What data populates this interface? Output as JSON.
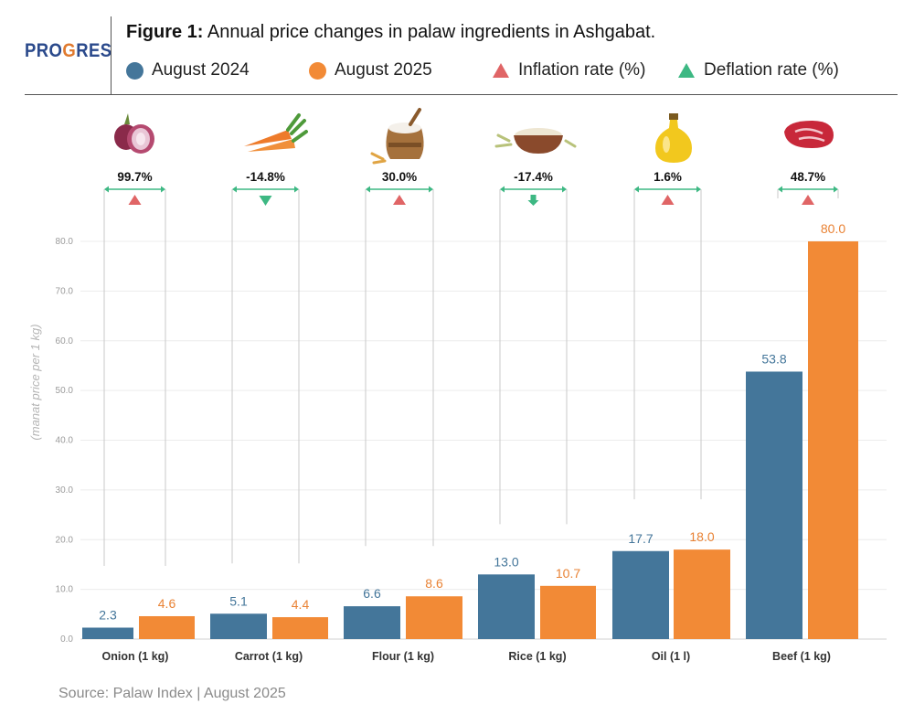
{
  "header": {
    "logo_prefix": "PRO",
    "logo_accent": "G",
    "logo_suffix": "RES",
    "title_prefix": "Figure 1:",
    "title_text": " Annual price changes in palaw ingredients in Ashgabat."
  },
  "legend": {
    "items": [
      {
        "label": "August 2024",
        "kind": "dot",
        "color": "#44769a"
      },
      {
        "label": "August 2025",
        "kind": "dot",
        "color": "#f28a36"
      },
      {
        "label": "Inflation rate (%)",
        "kind": "triangle-up",
        "color": "#e06566"
      },
      {
        "label": "Deflation rate (%)",
        "kind": "triangle-up",
        "color": "#3db883"
      }
    ]
  },
  "chart_data": {
    "type": "bar",
    "ylabel": "(manat price per 1 kg)",
    "ylim": [
      0,
      80
    ],
    "yticks": [
      "0.0",
      "10.0",
      "20.0",
      "30.0",
      "40.0",
      "50.0",
      "60.0",
      "70.0",
      "80.0"
    ],
    "grid": true,
    "categories": [
      "Onion (1 kg)",
      "Carrot (1 kg)",
      "Flour (1 kg)",
      "Rice (1 kg)",
      "Oil (1 l)",
      "Beef (1 kg)"
    ],
    "icons": [
      "onion-icon",
      "carrot-icon",
      "flour-sack-icon",
      "rice-bowl-icon",
      "oil-bottle-icon",
      "beef-icon"
    ],
    "series": [
      {
        "name": "August 2024",
        "color": "#44769a",
        "values": [
          2.3,
          5.1,
          6.6,
          13.0,
          17.7,
          53.8
        ],
        "labels": [
          "2.3",
          "5.1",
          "6.6",
          "13.0",
          "17.7",
          "53.8"
        ]
      },
      {
        "name": "August 2025",
        "color": "#f28a36",
        "values": [
          4.6,
          4.4,
          8.6,
          10.7,
          18.0,
          80.0
        ],
        "labels": [
          "4.6",
          "4.4",
          "8.6",
          "10.7",
          "18.0",
          "80.0"
        ]
      }
    ],
    "changes": {
      "labels": [
        "99.7%",
        "-14.8%",
        "30.0%",
        "-17.4%",
        "1.6%",
        "48.7%"
      ],
      "direction": [
        "inflation",
        "deflation",
        "inflation",
        "deflation",
        "inflation",
        "inflation"
      ]
    },
    "colors": {
      "inflation": "#e06566",
      "deflation": "#3db883",
      "bracket": "#3db883",
      "series_1_label": "#44769a",
      "series_2_label": "#e98234"
    }
  },
  "source": "Source: Palaw Index | August 2025"
}
